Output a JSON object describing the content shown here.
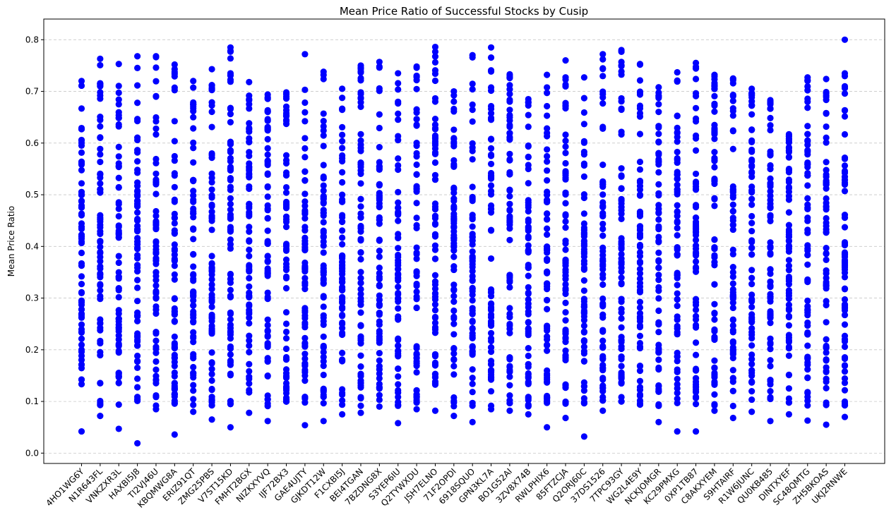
{
  "chart_data": {
    "type": "scatter",
    "title": "Mean Price Ratio of Successful Stocks by Cusip",
    "xlabel": "",
    "ylabel": "Mean Price Ratio",
    "ylim": [
      -0.02,
      0.84
    ],
    "yticks": [
      0.0,
      0.1,
      0.2,
      0.3,
      0.4,
      0.5,
      0.6,
      0.7,
      0.8
    ],
    "y_grid": true,
    "marker_color": "#0000ff",
    "categories": [
      "4HO1WG6Y",
      "N1R643FL",
      "VNKZXR3L",
      "HAXBI5J8",
      "TI2VJ46U",
      "KBQMWG8A",
      "ERIZ91QT",
      "ZMG25PBS",
      "V7ST15KD",
      "FMHT2BGX",
      "NIZKXYVQ",
      "IJF72BX3",
      "GAE4UJTY",
      "GJKDT12W",
      "F1CXBI5J",
      "BEI4TGAN",
      "7BZDNG8X",
      "S3YEP6IU",
      "Q2TYWXDU",
      "JSH7ELNO",
      "71F2OPDI",
      "6918SQUO",
      "GPN3KL7A",
      "BO1G52AI",
      "3ZV8X74B",
      "RWLPHIX6",
      "85FTZCJA",
      "Q2ORJ60C",
      "37DS1526",
      "7TPC93GY",
      "WG2L4E9Y",
      "NCKJOMGR",
      "KC29PMXG",
      "0XP1TB87",
      "C8AKXYEM",
      "S9HTAIRF",
      "R1W6JUNC",
      "QU0KB485",
      "DINTXYEF",
      "SC48QMTG",
      "ZH5BKOAS",
      "UKJ2RNWE"
    ],
    "range_min": [
      0.042,
      0.072,
      0.047,
      0.019,
      0.085,
      0.036,
      0.08,
      0.065,
      0.05,
      0.078,
      0.062,
      0.1,
      0.054,
      0.062,
      0.075,
      0.078,
      0.09,
      0.058,
      0.085,
      0.082,
      0.072,
      0.06,
      0.085,
      0.082,
      0.075,
      0.05,
      0.068,
      0.032,
      0.082,
      0.1,
      0.094,
      0.06,
      0.042,
      0.042,
      0.082,
      0.068,
      0.08,
      0.062,
      0.075,
      0.063,
      0.055,
      0.07
    ],
    "range_max": [
      0.72,
      0.763,
      0.753,
      0.768,
      0.768,
      0.752,
      0.72,
      0.743,
      0.785,
      0.718,
      0.694,
      0.698,
      0.772,
      0.738,
      0.705,
      0.75,
      0.757,
      0.735,
      0.748,
      0.786,
      0.7,
      0.77,
      0.785,
      0.733,
      0.685,
      0.732,
      0.76,
      0.727,
      0.772,
      0.78,
      0.753,
      0.708,
      0.737,
      0.755,
      0.732,
      0.725,
      0.705,
      0.683,
      0.617,
      0.727,
      0.724,
      0.8
    ]
  }
}
